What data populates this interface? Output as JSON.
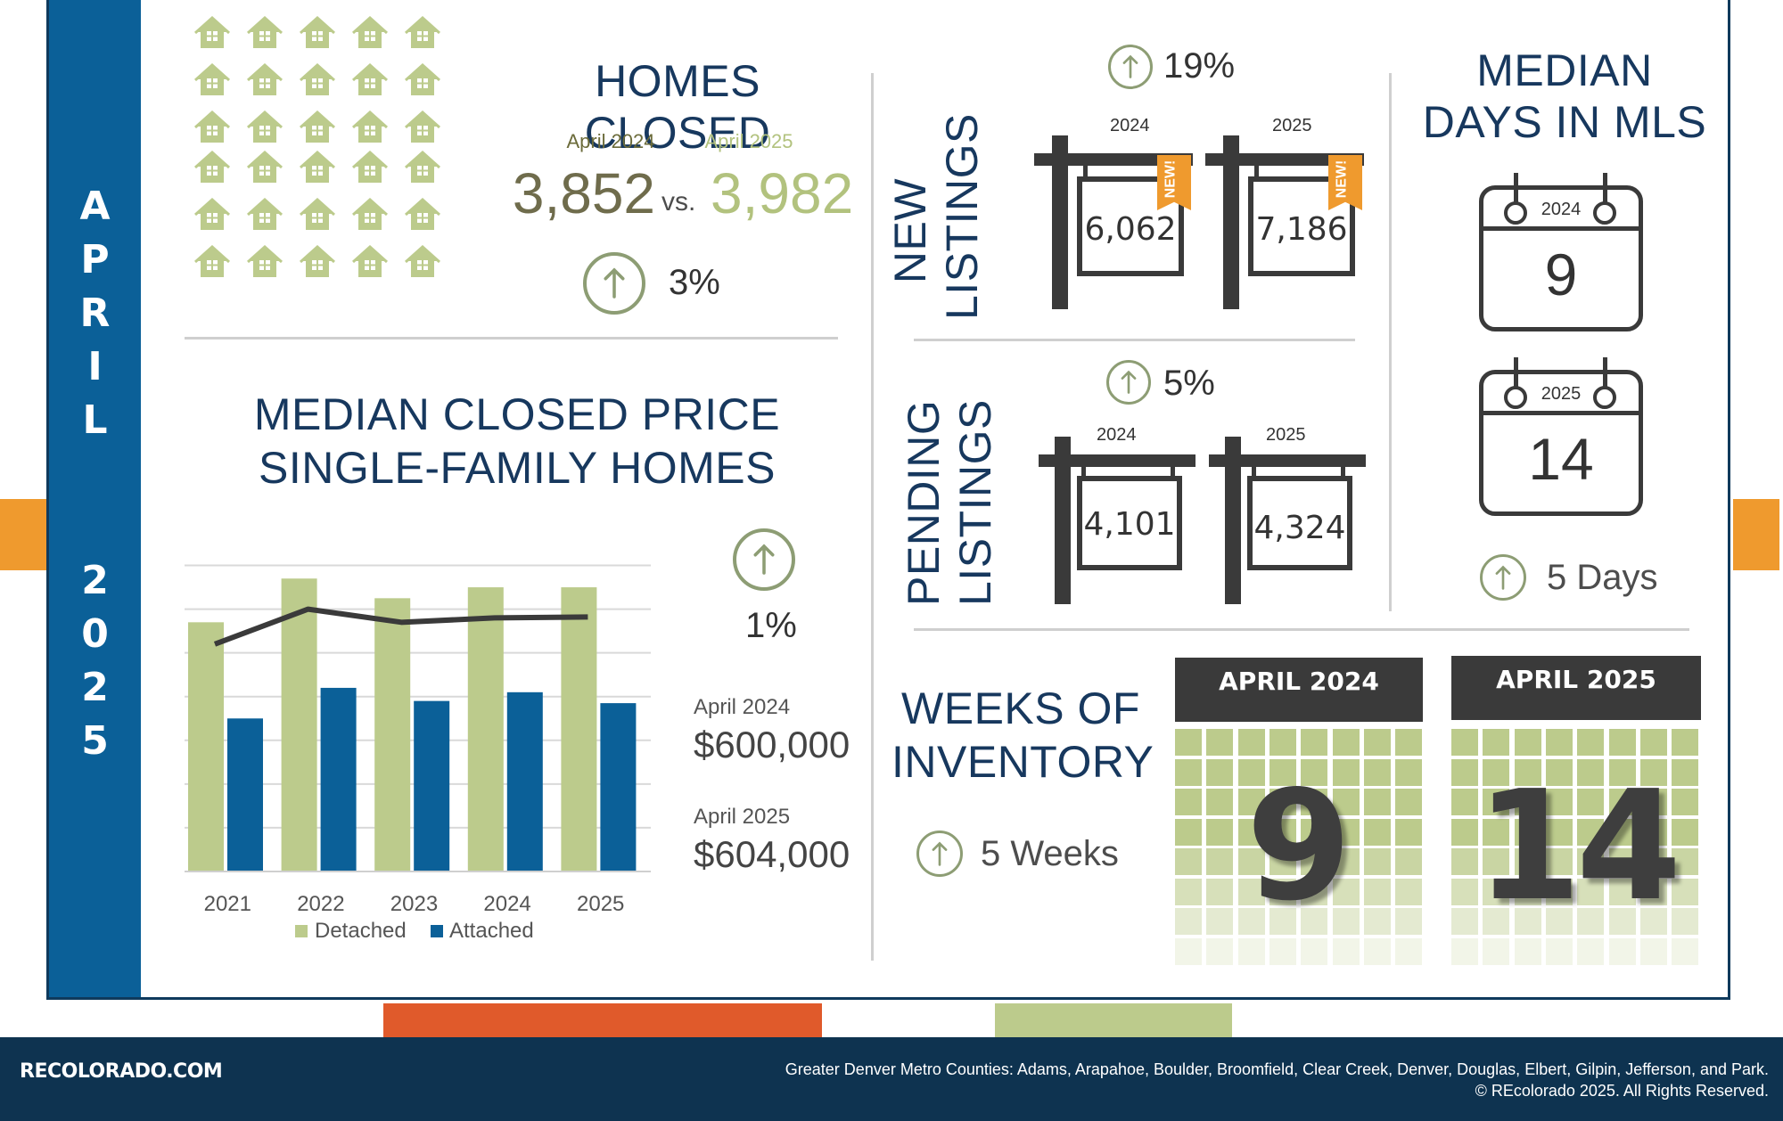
{
  "month_label": [
    "A",
    "P",
    "R",
    "I",
    "L"
  ],
  "year_label": [
    "2",
    "0",
    "2",
    "5"
  ],
  "homes_closed": {
    "title": "HOMES CLOSED",
    "label_2024": "April 2024",
    "label_2025": "April 2025",
    "value_2024": "3,852",
    "vs": "vs.",
    "value_2025": "3,982",
    "change": "3%",
    "house_icon": "house-icon",
    "house_count": 30
  },
  "median_price": {
    "title_line1": "MEDIAN CLOSED PRICE",
    "title_line2": "SINGLE-FAMILY HOMES",
    "change": "1%",
    "label_2024": "April 2024",
    "value_2024": "$600,000",
    "label_2025": "April 2025",
    "value_2025": "$604,000"
  },
  "chart_data": {
    "type": "bar",
    "categories": [
      "2021",
      "2022",
      "2023",
      "2024",
      "2025"
    ],
    "series": [
      {
        "name": "Detached",
        "type": "bar",
        "color": "#bccb8c",
        "values": [
          570,
          670,
          625,
          650,
          650
        ]
      },
      {
        "name": "Attached",
        "type": "bar",
        "color": "#0b6098",
        "values": [
          350,
          420,
          390,
          410,
          385
        ]
      },
      {
        "name": "",
        "type": "line",
        "color": "#3a3a3a",
        "values": [
          520,
          600,
          570,
          580,
          582
        ]
      }
    ],
    "ylim": [
      0,
      750
    ],
    "gridlines": true,
    "legend": "bottom"
  },
  "new_listings": {
    "title_line1": "NEW",
    "title_line2": "LISTINGS",
    "change": "19%",
    "year_2024": "2024",
    "year_2025": "2025",
    "value_2024": "6,062",
    "value_2025": "7,186",
    "badge": "NEW!"
  },
  "pending_listings": {
    "title_line1": "PENDING",
    "title_line2": "LISTINGS",
    "change": "5%",
    "year_2024": "2024",
    "year_2025": "2025",
    "value_2024": "4,101",
    "value_2025": "4,324"
  },
  "days_in_mls": {
    "title_line1": "MEDIAN",
    "title_line2": "DAYS IN MLS",
    "year_2024": "2024",
    "value_2024": "9",
    "year_2025": "2025",
    "value_2025": "14",
    "change": "5 Days"
  },
  "weeks_inventory": {
    "title_line1": "WEEKS OF",
    "title_line2": "INVENTORY",
    "change": "5 Weeks",
    "label_2024": "APRIL 2024",
    "value_2024": "9",
    "label_2025": "APRIL 2025",
    "value_2025": "14"
  },
  "footer": {
    "brand": "RECOLORADO.COM",
    "counties": "Greater Denver Metro Counties: Adams, Arapahoe, Boulder, Broomfield, Clear Creek, Denver, Douglas, Elbert, Gilpin, Jefferson, and Park.",
    "copyright": "© REcolorado 2025. All Rights Reserved."
  },
  "colors": {
    "navy": "#17385e",
    "blue": "#0b6098",
    "olive": "#bccb8c",
    "orange": "#ef9a2e",
    "red": "#e05a2b"
  }
}
